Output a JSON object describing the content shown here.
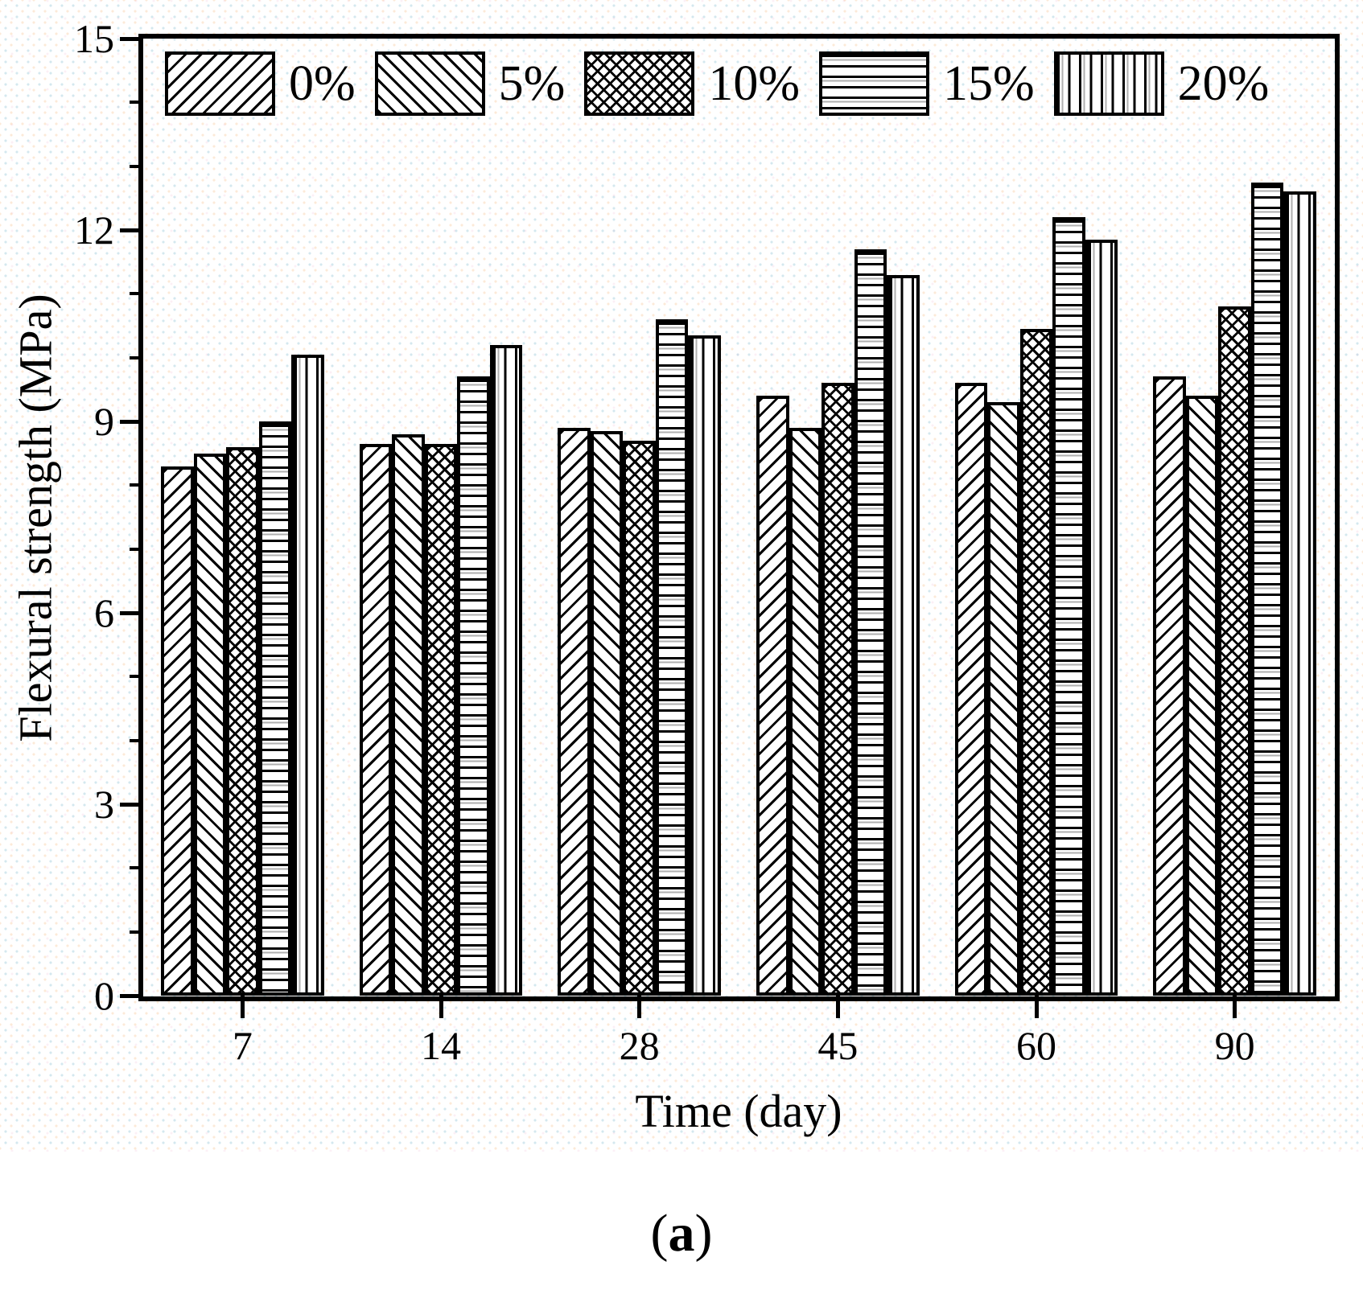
{
  "figure": {
    "caption": {
      "open": "(",
      "letter": "a",
      "close": ")"
    }
  },
  "chart_data": {
    "type": "bar",
    "title": "",
    "xlabel": "Time (day)",
    "ylabel": "Flexural strength (MPa)",
    "categories": [
      "7",
      "14",
      "28",
      "45",
      "60",
      "90"
    ],
    "series": [
      {
        "name": "0%",
        "pattern": "diagonal-up",
        "values": [
          8.3,
          8.65,
          8.9,
          9.4,
          9.6,
          9.7
        ]
      },
      {
        "name": "5%",
        "pattern": "diagonal-down",
        "values": [
          8.5,
          8.8,
          8.85,
          8.9,
          9.3,
          9.4
        ]
      },
      {
        "name": "10%",
        "pattern": "crosshatch",
        "values": [
          8.6,
          8.65,
          8.7,
          9.6,
          10.45,
          10.8
        ]
      },
      {
        "name": "15%",
        "pattern": "horizontal",
        "values": [
          9.0,
          9.7,
          10.6,
          11.7,
          12.2,
          12.75
        ]
      },
      {
        "name": "20%",
        "pattern": "vertical",
        "values": [
          10.05,
          10.2,
          10.35,
          11.3,
          11.85,
          12.6
        ]
      }
    ],
    "ylim": [
      0,
      15
    ],
    "yticks_major": [
      0,
      3,
      6,
      9,
      12,
      15
    ],
    "ytick_minor_step": 1,
    "grid": false,
    "legend_position": "top-left-inside",
    "bar_fill_color": "#ffffff",
    "line_color": "#000000"
  }
}
